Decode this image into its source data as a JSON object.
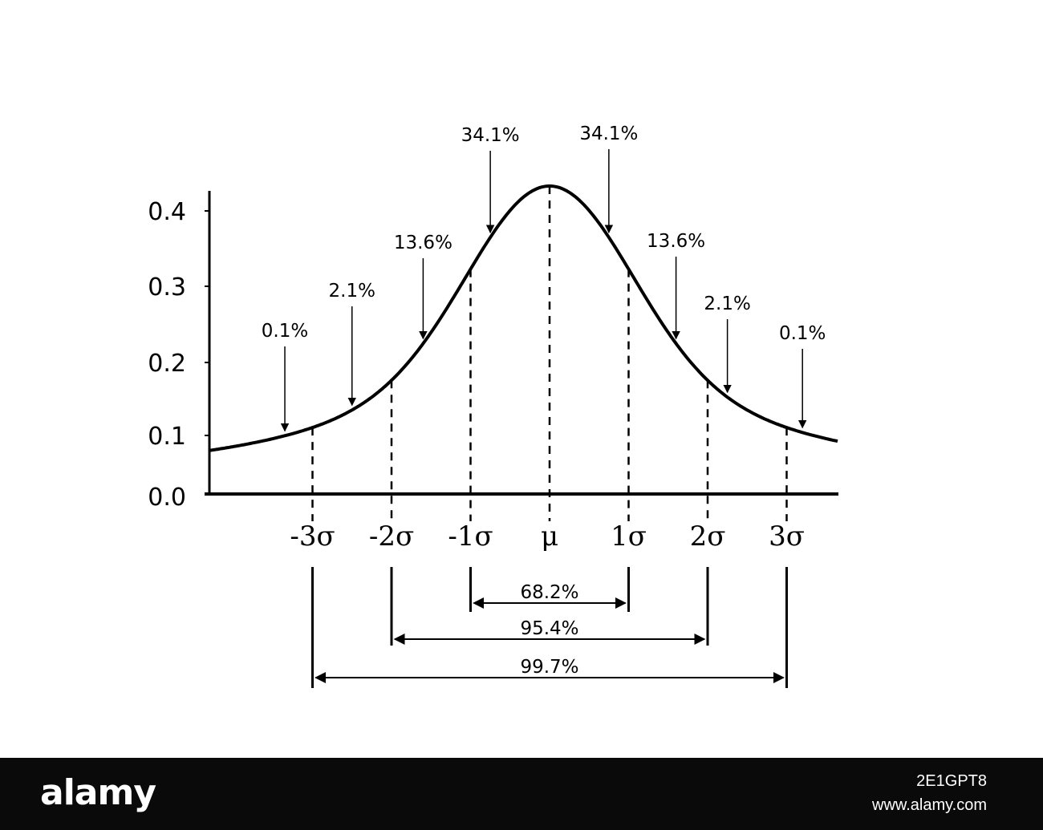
{
  "chart_data": {
    "type": "line",
    "title": "",
    "xlabel": "",
    "ylabel": "",
    "y_ticks": [
      "0.0",
      "0.1",
      "0.2",
      "0.3",
      "0.4"
    ],
    "ylim": [
      0,
      0.4
    ],
    "x_ticks": [
      {
        "label": "-3σ",
        "value": -3
      },
      {
        "label": "-2σ",
        "value": -2
      },
      {
        "label": "-1σ",
        "value": -1
      },
      {
        "label": "μ",
        "value": 0
      },
      {
        "label": "1σ",
        "value": 1
      },
      {
        "label": "2σ",
        "value": 2
      },
      {
        "label": "3σ",
        "value": 3
      }
    ],
    "curve": {
      "name": "normal distribution",
      "mean": 0,
      "sd": 1,
      "peak": 0.4
    },
    "region_percentages": [
      {
        "label": "0.1%",
        "x": -3.35
      },
      {
        "label": "2.1%",
        "x": -2.5
      },
      {
        "label": "13.6%",
        "x": -1.6
      },
      {
        "label": "34.1%",
        "x": -0.75
      },
      {
        "label": "34.1%",
        "x": 0.75
      },
      {
        "label": "13.6%",
        "x": 1.6
      },
      {
        "label": "2.1%",
        "x": 2.25
      },
      {
        "label": "0.1%",
        "x": 3.2
      }
    ],
    "spans": [
      {
        "label": "68.2%",
        "from": -1,
        "to": 1
      },
      {
        "label": "95.4%",
        "from": -2,
        "to": 2
      },
      {
        "label": "99.7%",
        "from": -3,
        "to": 3
      }
    ],
    "grid": false,
    "legend": "none"
  },
  "footer": {
    "logo": "alamy",
    "image_id": "2E1GPT8",
    "site": "www.alamy.com"
  },
  "colors": {
    "ink": "#000000",
    "background": "#ffffff",
    "footer_bg": "#0a0a0a",
    "footer_text": "#ffffff"
  }
}
